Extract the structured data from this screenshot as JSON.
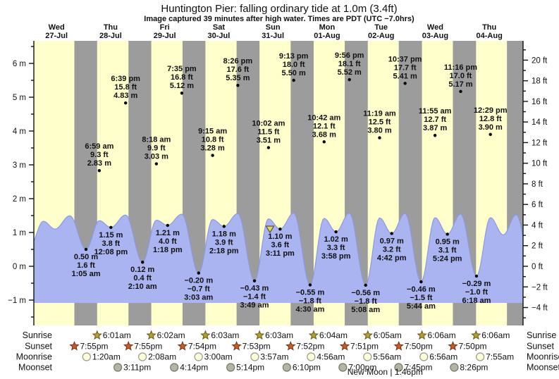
{
  "title": "Huntington Pier: falling ordinary tide at 1.0m (3.4ft)",
  "subtitle": "Image captured 39 minutes after high water. Times are PDT (UTC −7.0hrs)",
  "colors": {
    "day_band": "#ffffcc",
    "night_band": "#9c9c9c",
    "tide_fill": "#aab4f0",
    "tide_stroke": "#8c99e4",
    "day_label": "#ee3333",
    "axis": "#111111",
    "sunrise_icon": "#b3a033",
    "sunrise_icon_stroke": "#6b5a10",
    "sunset_icon": "#cc5a22",
    "sunset_icon_stroke": "#7a3010",
    "moonrise_icon": "#ffffd8",
    "moonrise_icon_stroke": "#999988",
    "moonset_icon": "#b3b3a6",
    "moonset_icon_stroke": "#777766",
    "marker_fill": "#e8d84a",
    "marker_stroke": "#555544"
  },
  "chart_data": {
    "type": "area",
    "title": "Huntington Pier: falling ordinary tide at 1.0m (3.4ft)",
    "subtitle": "Image captured 39 minutes after high water. Times are PDT (UTC −7.0hrs)",
    "days": [
      {
        "name": "Wed",
        "date": "27-Jul"
      },
      {
        "name": "Thu",
        "date": "28-Jul"
      },
      {
        "name": "Fri",
        "date": "29-Jul"
      },
      {
        "name": "Sat",
        "date": "30-Jul"
      },
      {
        "name": "Sun",
        "date": "31-Jul"
      },
      {
        "name": "Mon",
        "date": "01-Aug"
      },
      {
        "name": "Tue",
        "date": "02-Aug"
      },
      {
        "name": "Wed",
        "date": "03-Aug"
      },
      {
        "name": "Thu",
        "date": "04-Aug"
      }
    ],
    "y_axis_left": {
      "unit": "m",
      "min": -1,
      "max": 6,
      "major_step": 1,
      "minor_step": 0.5
    },
    "y_axis_right": {
      "unit": "ft",
      "min": -4,
      "max": 20,
      "major_step": 2,
      "minor_step": 1
    },
    "tide_events": [
      {
        "day": 1,
        "type": "low",
        "time": "1:05 am",
        "m": "0.50",
        "ft": "1.6",
        "value_m": 0.5
      },
      {
        "day": 1,
        "type": "high",
        "time": "6:59 am",
        "m": "2.83",
        "ft": "9.3",
        "value_m": 2.83
      },
      {
        "day": 1,
        "type": "low",
        "time": "12:08 pm",
        "m": "1.15",
        "ft": "3.8",
        "value_m": 1.15
      },
      {
        "day": 1,
        "type": "high",
        "time": "6:39 pm",
        "m": "4.83",
        "ft": "15.8",
        "value_m": 4.83
      },
      {
        "day": 2,
        "type": "low",
        "time": "2:10 am",
        "m": "0.12",
        "ft": "0.4",
        "value_m": 0.12
      },
      {
        "day": 2,
        "type": "high",
        "time": "8:18 am",
        "m": "3.03",
        "ft": "9.9",
        "value_m": 3.03
      },
      {
        "day": 2,
        "type": "low",
        "time": "1:18 pm",
        "m": "1.21",
        "ft": "4.0",
        "value_m": 1.21
      },
      {
        "day": 2,
        "type": "high",
        "time": "7:35 pm",
        "m": "5.12",
        "ft": "16.8",
        "value_m": 5.12
      },
      {
        "day": 3,
        "type": "low",
        "time": "3:03 am",
        "m": "−0.20",
        "ft": "−0.7",
        "value_m": -0.2
      },
      {
        "day": 3,
        "type": "high",
        "time": "9:15 am",
        "m": "3.28",
        "ft": "10.8",
        "value_m": 3.28
      },
      {
        "day": 3,
        "type": "low",
        "time": "2:18 pm",
        "m": "1.18",
        "ft": "3.9",
        "value_m": 1.18
      },
      {
        "day": 3,
        "type": "high",
        "time": "8:26 pm",
        "m": "5.35",
        "ft": "17.6",
        "value_m": 5.35
      },
      {
        "day": 4,
        "type": "low",
        "time": "3:49 am",
        "m": "−0.43",
        "ft": "−1.4",
        "value_m": -0.43
      },
      {
        "day": 4,
        "type": "high",
        "time": "10:02 am",
        "m": "3.51",
        "ft": "11.5",
        "value_m": 3.51
      },
      {
        "day": 4,
        "type": "low",
        "time": "3:11 pm",
        "m": "1.10",
        "ft": "3.6",
        "value_m": 1.1
      },
      {
        "day": 4,
        "type": "high",
        "time": "9:13 pm",
        "m": "5.50",
        "ft": "18.0",
        "value_m": 5.5
      },
      {
        "day": 5,
        "type": "low",
        "time": "4:30 am",
        "m": "−0.55",
        "ft": "−1.8",
        "value_m": -0.55
      },
      {
        "day": 5,
        "type": "high",
        "time": "10:42 am",
        "m": "3.68",
        "ft": "12.1",
        "value_m": 3.68
      },
      {
        "day": 5,
        "type": "low",
        "time": "3:58 pm",
        "m": "1.02",
        "ft": "3.3",
        "value_m": 1.02
      },
      {
        "day": 5,
        "type": "high",
        "time": "9:56 pm",
        "m": "5.52",
        "ft": "18.1",
        "value_m": 5.52
      },
      {
        "day": 6,
        "type": "low",
        "time": "5:08 am",
        "m": "−0.56",
        "ft": "−1.8",
        "value_m": -0.56
      },
      {
        "day": 6,
        "type": "high",
        "time": "11:19 am",
        "m": "3.80",
        "ft": "12.5",
        "value_m": 3.8
      },
      {
        "day": 6,
        "type": "low",
        "time": "4:42 pm",
        "m": "0.97",
        "ft": "3.2",
        "value_m": 0.97
      },
      {
        "day": 6,
        "type": "high",
        "time": "10:37 pm",
        "m": "5.41",
        "ft": "17.7",
        "value_m": 5.41
      },
      {
        "day": 7,
        "type": "low",
        "time": "5:44 am",
        "m": "−0.46",
        "ft": "−1.5",
        "value_m": -0.46
      },
      {
        "day": 7,
        "type": "high",
        "time": "11:55 am",
        "m": "3.87",
        "ft": "12.7",
        "value_m": 3.87
      },
      {
        "day": 7,
        "type": "low",
        "time": "5:24 pm",
        "m": "0.95",
        "ft": "3.1",
        "value_m": 0.95
      },
      {
        "day": 7,
        "type": "high",
        "time": "11:16 pm",
        "m": "5.17",
        "ft": "17.0",
        "value_m": 5.17
      },
      {
        "day": 8,
        "type": "low",
        "time": "6:18 am",
        "m": "−0.29",
        "ft": "−1.0",
        "value_m": -0.29
      },
      {
        "day": 8,
        "type": "high",
        "time": "12:29 pm",
        "m": "3.90",
        "ft": "12.8",
        "value_m": 3.9
      }
    ],
    "offscreen_curve_anchors": {
      "before": [
        {
          "day": 0,
          "time": "12:15 am",
          "value_m": 0.6
        },
        {
          "day": 0,
          "time": "6:10 am",
          "value_m": 2.65
        },
        {
          "day": 0,
          "time": "11:20 am",
          "value_m": 1.1
        },
        {
          "day": 0,
          "time": "5:55 pm",
          "value_m": 4.55
        }
      ],
      "after": [
        {
          "day": 8,
          "time": "6:10 pm",
          "value_m": 0.93
        },
        {
          "day": 8,
          "time": "11:55 pm",
          "value_m": 4.95
        },
        {
          "day": 9,
          "time": "7:00 am",
          "value_m": -0.2
        }
      ]
    },
    "capture_marker": {
      "day": 4,
      "time": "10:41 am",
      "height_m": 1.0
    }
  },
  "almanac": {
    "rows": [
      {
        "label": "Sunrise",
        "icon": "sunrise",
        "entries": [
          {
            "day": 1,
            "time": "6:01am"
          },
          {
            "day": 2,
            "time": "6:02am"
          },
          {
            "day": 3,
            "time": "6:03am"
          },
          {
            "day": 4,
            "time": "6:03am"
          },
          {
            "day": 5,
            "time": "6:04am"
          },
          {
            "day": 6,
            "time": "6:05am"
          },
          {
            "day": 7,
            "time": "6:06am"
          },
          {
            "day": 8,
            "time": "6:06am"
          }
        ]
      },
      {
        "label": "Sunset",
        "icon": "sunset",
        "entries": [
          {
            "day": 0,
            "time": "7:55pm"
          },
          {
            "day": 1,
            "time": "7:55pm"
          },
          {
            "day": 2,
            "time": "7:54pm"
          },
          {
            "day": 3,
            "time": "7:53pm"
          },
          {
            "day": 4,
            "time": "7:52pm"
          },
          {
            "day": 5,
            "time": "7:51pm"
          },
          {
            "day": 6,
            "time": "7:50pm"
          },
          {
            "day": 7,
            "time": "7:50pm"
          }
        ]
      },
      {
        "label": "Moonrise",
        "icon": "moonrise",
        "entries": [
          {
            "day": 1,
            "time": "1:20am"
          },
          {
            "day": 2,
            "time": "2:08am"
          },
          {
            "day": 3,
            "time": "3:00am"
          },
          {
            "day": 4,
            "time": "3:57am"
          },
          {
            "day": 5,
            "time": "4:56am"
          },
          {
            "day": 6,
            "time": "5:56am"
          },
          {
            "day": 7,
            "time": "6:56am"
          },
          {
            "day": 8,
            "time": "7:55am"
          }
        ]
      },
      {
        "label": "Moonset",
        "icon": "moonset",
        "entries": [
          {
            "day": 1,
            "time": "3:11pm"
          },
          {
            "day": 2,
            "time": "4:14pm"
          },
          {
            "day": 3,
            "time": "5:14pm"
          },
          {
            "day": 4,
            "time": "6:10pm"
          },
          {
            "day": 5,
            "time": "7:00pm"
          },
          {
            "day": 6,
            "time": "7:45pm"
          },
          {
            "day": 7,
            "time": "8:26pm"
          }
        ]
      }
    ],
    "moon_phase": {
      "label": "New Moon",
      "time": "1:46pm",
      "day": 6
    }
  }
}
